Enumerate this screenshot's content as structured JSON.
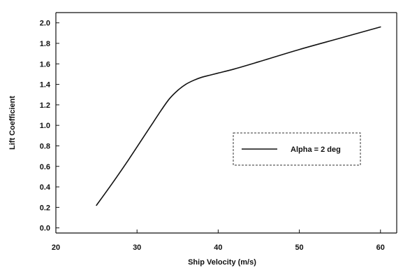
{
  "chart_data": {
    "type": "line",
    "title": "",
    "xlabel": "Ship Velocity (m/s)",
    "ylabel": "Lift Coefficient",
    "xlim": [
      20,
      62
    ],
    "ylim": [
      -0.05,
      2.1
    ],
    "x_ticks": [
      20,
      30,
      40,
      50,
      60
    ],
    "y_ticks": [
      0.0,
      0.2,
      0.4,
      0.6,
      0.8,
      1.0,
      1.2,
      1.4,
      1.6,
      1.8,
      2.0
    ],
    "x_tick_labels": [
      "20",
      "30",
      "40",
      "50",
      "60"
    ],
    "y_tick_labels": [
      "0.0",
      "0.2",
      "0.4",
      "0.6",
      "0.8",
      "1.0",
      "1.2",
      "1.4",
      "1.6",
      "1.8",
      "2.0"
    ],
    "grid": false,
    "legend_position": "center-right",
    "series": [
      {
        "name": "Alpha = 2 deg",
        "color": "#111111",
        "x": [
          25,
          27,
          29,
          31,
          32,
          33,
          34,
          35,
          36,
          37,
          38,
          39,
          40,
          42,
          45,
          50,
          55,
          60
        ],
        "y": [
          0.22,
          0.44,
          0.67,
          0.91,
          1.03,
          1.15,
          1.26,
          1.34,
          1.4,
          1.44,
          1.47,
          1.49,
          1.51,
          1.55,
          1.62,
          1.74,
          1.85,
          1.96
        ]
      }
    ]
  }
}
